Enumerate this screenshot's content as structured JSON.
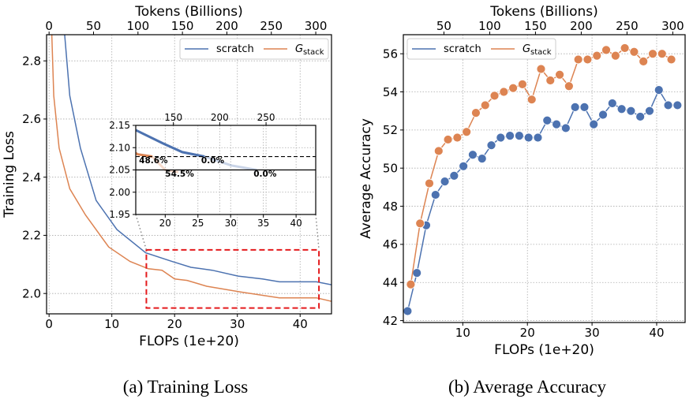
{
  "colors": {
    "scratch": "#4c72b0",
    "gstack": "#dd8452",
    "highlight_box": "#e41a1c"
  },
  "chart_data": [
    {
      "type": "line",
      "caption": "(a) Training Loss",
      "xlabel": "FLOPs (1e+20)",
      "ylabel": "Training Loss",
      "top_xlabel": "Tokens (Billions)",
      "xlim": [
        -0.4,
        45
      ],
      "ylim": [
        1.93,
        2.89
      ],
      "xticks": [
        0,
        10,
        20,
        30,
        40
      ],
      "yticks": [
        "2.0",
        "2.2",
        "2.4",
        "2.6",
        "2.8"
      ],
      "top_xticks": [
        0,
        50,
        100,
        150,
        200,
        250,
        300
      ],
      "tokens_per_flop": 7.06,
      "grid": true,
      "legend": "top-right",
      "series": [
        {
          "name": "scratch",
          "key": "scratch",
          "x": [
            2.4,
            3.3,
            5.0,
            7.5,
            10.8,
            15.4,
            19.6,
            22.6,
            26,
            30.1,
            34,
            36.7,
            42.6,
            45
          ],
          "y": [
            2.91,
            2.68,
            2.5,
            2.32,
            2.22,
            2.14,
            2.11,
            2.09,
            2.08,
            2.06,
            2.05,
            2.04,
            2.04,
            2.03
          ]
        },
        {
          "name": "G_stack",
          "key": "gstack",
          "x": [
            0.4,
            0.75,
            1.6,
            3.3,
            5.8,
            9.5,
            12.9,
            15.8,
            18,
            20,
            22,
            25.1,
            30.5,
            36.7,
            42.6,
            45
          ],
          "y": [
            2.91,
            2.68,
            2.5,
            2.36,
            2.27,
            2.16,
            2.11,
            2.085,
            2.08,
            2.05,
            2.045,
            2.025,
            2.005,
            1.985,
            1.985,
            1.973
          ]
        }
      ],
      "zoom_box": {
        "xlim": [
          15.5,
          43
        ],
        "ylim": [
          1.95,
          2.15
        ]
      },
      "inset": {
        "xlim": [
          15.5,
          43
        ],
        "ylim": [
          1.95,
          2.15
        ],
        "xticks": [
          20,
          25,
          30,
          35,
          40
        ],
        "yticks": [
          "1.95",
          "2.00",
          "2.05",
          "2.10",
          "2.15"
        ],
        "top_xticks": [
          150,
          200,
          250
        ],
        "lines": [
          {
            "y": 2.08,
            "style": "dashed"
          },
          {
            "y": 2.05,
            "style": "solid"
          }
        ],
        "series_ranges": {
          "scratch": {
            "solid_until": 26,
            "faded_until": 34
          },
          "gstack": {
            "solid_until": 18,
            "faded_until": 22
          }
        },
        "annotations": [
          {
            "text": "48.6%",
            "x": 16.0,
            "y": 2.072
          },
          {
            "text": "0.0%",
            "x": 25.5,
            "y": 2.072
          },
          {
            "text": "54.5%",
            "x": 20.0,
            "y": 2.042
          },
          {
            "text": "0.0%",
            "x": 33.5,
            "y": 2.042
          }
        ]
      }
    },
    {
      "type": "line",
      "caption": "(b) Average Accuracy",
      "xlabel": "FLOPs (1e+20)",
      "ylabel": "Average Accuracy",
      "top_xlabel": "Tokens (Billions)",
      "xlim": [
        0.8,
        44.4
      ],
      "ylim": [
        41.9,
        57.0
      ],
      "xticks": [
        10,
        20,
        30,
        40
      ],
      "yticks": [
        42,
        44,
        46,
        48,
        50,
        52,
        54,
        56
      ],
      "top_xticks": [
        50,
        100,
        150,
        200,
        250,
        300
      ],
      "tokens_per_flop": 7.06,
      "grid": true,
      "legend": "top-left",
      "markers": true,
      "series": [
        {
          "name": "scratch",
          "key": "scratch",
          "x0": 1.46,
          "dx": 1.44,
          "y": [
            42.5,
            44.5,
            47.0,
            48.6,
            49.3,
            49.6,
            50.1,
            50.7,
            50.5,
            51.2,
            51.6,
            51.7,
            51.7,
            51.6,
            51.6,
            52.5,
            52.3,
            52.1,
            53.2,
            53.2,
            52.3,
            52.8,
            53.4,
            53.1,
            53.0,
            52.7,
            53.0,
            54.1,
            53.3,
            53.3
          ]
        },
        {
          "name": "G_stack",
          "key": "gstack",
          "x0": 1.95,
          "dx": 1.44,
          "y": [
            43.9,
            47.1,
            49.2,
            50.9,
            51.5,
            51.6,
            51.9,
            52.9,
            53.3,
            53.8,
            54.0,
            54.2,
            54.4,
            53.6,
            55.2,
            54.6,
            54.9,
            54.3,
            55.7,
            55.7,
            55.9,
            56.2,
            55.9,
            56.3,
            56.1,
            55.6,
            56.0,
            56.0,
            55.7
          ]
        }
      ]
    }
  ],
  "legend": {
    "scratch": "scratch",
    "gstack_main": "G",
    "gstack_sub": "stack"
  }
}
